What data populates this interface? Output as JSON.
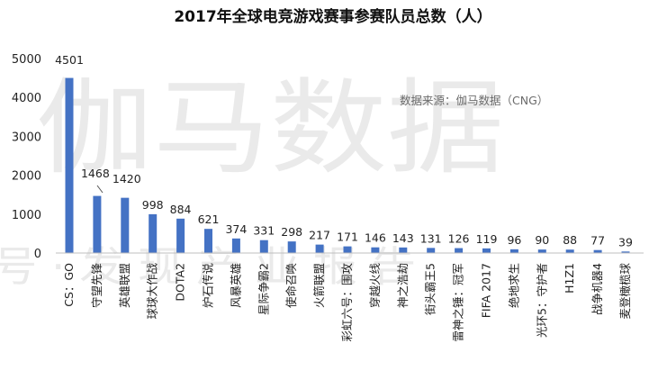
{
  "chart_data": {
    "type": "bar",
    "title": "2017年全球电竞游戏赛事参赛队员总数（人）",
    "source_note": "数据来源：伽马数据（CNG）",
    "watermark": "伽马数据",
    "watermark_line2": "号 · 发 现 产 业 报 告",
    "colors": {
      "bar": "#4472C4"
    },
    "ylim": [
      0,
      5000
    ],
    "yticks": [
      0,
      1000,
      2000,
      3000,
      4000,
      5000
    ],
    "categories": [
      "CS：GO",
      "守望先锋",
      "英雄联盟",
      "球球大作战",
      "DOTA2",
      "炉石传说",
      "风暴英雄",
      "星际争霸2",
      "使命召唤",
      "火箭联盟",
      "彩虹六号：围攻",
      "穿越火线",
      "神之浩劫",
      "街头霸王5",
      "雷神之锤：冠军",
      "FIFA 2017",
      "绝地求生",
      "光环5：守护者",
      "H1Z1",
      "战争机器4",
      "麦登橄榄球"
    ],
    "values": [
      4501,
      1468,
      1420,
      998,
      884,
      621,
      374,
      331,
      298,
      217,
      171,
      146,
      143,
      131,
      126,
      119,
      96,
      90,
      88,
      77,
      39
    ],
    "grid": false,
    "legend": "none"
  }
}
